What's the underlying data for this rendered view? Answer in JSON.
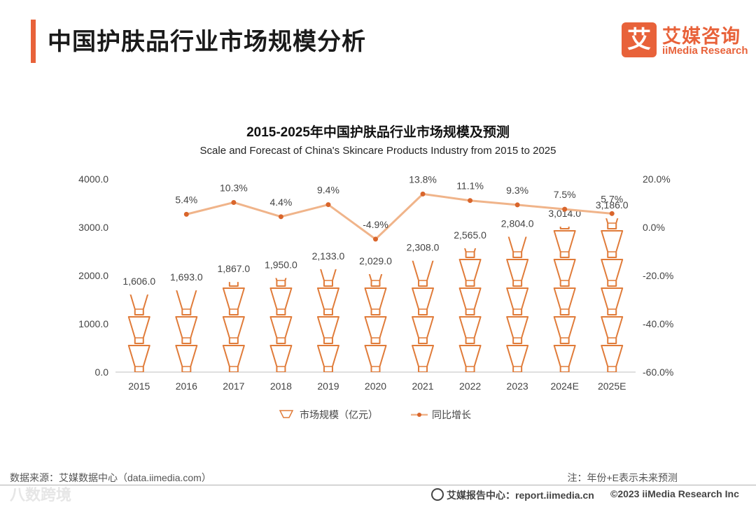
{
  "header": {
    "title": "中国护肤品行业市场规模分析",
    "logo_mark": "艾",
    "logo_cn": "艾媒咨询",
    "logo_en": "iiMedia Research"
  },
  "colors": {
    "accent": "#e8623a",
    "bar_stroke": "#e07b39",
    "line": "#f0b48a",
    "dot": "#d9652b"
  },
  "chart_data": {
    "type": "bar",
    "title": "2015-2025年中国护肤品行业市场规模及预测",
    "subtitle": "Scale and Forecast of China's Skincare Products Industry from 2015 to 2025",
    "categories": [
      "2015",
      "2016",
      "2017",
      "2018",
      "2019",
      "2020",
      "2021",
      "2022",
      "2023",
      "2024E",
      "2025E"
    ],
    "series": [
      {
        "name": "市场规模（亿元）",
        "type": "bar",
        "axis": "left",
        "values": [
          1606.0,
          1693.0,
          1867.0,
          1950.0,
          2133.0,
          2029.0,
          2308.0,
          2565.0,
          2804.0,
          3014.0,
          3186.0
        ],
        "labels": [
          "1,606.0",
          "1,693.0",
          "1,867.0",
          "1,950.0",
          "2,133.0",
          "2,029.0",
          "2,308.0",
          "2,565.0",
          "2,804.0",
          "3,014.0",
          "3,186.0"
        ]
      },
      {
        "name": "同比增长",
        "type": "line",
        "axis": "right",
        "values": [
          null,
          5.4,
          10.3,
          4.4,
          9.4,
          -4.9,
          13.8,
          11.1,
          9.3,
          7.5,
          5.7
        ],
        "labels": [
          "",
          "5.4%",
          "10.3%",
          "4.4%",
          "9.4%",
          "-4.9%",
          "13.8%",
          "11.1%",
          "9.3%",
          "7.5%",
          "5.7%"
        ]
      }
    ],
    "ylim": [
      0,
      4000
    ],
    "y2lim": [
      -60,
      20
    ],
    "yticks": [
      "0.0",
      "1000.0",
      "2000.0",
      "3000.0",
      "4000.0"
    ],
    "y2ticks": [
      "-60.0%",
      "-40.0%",
      "-20.0%",
      "0.0%",
      "20.0%"
    ],
    "legend": [
      "市场规模（亿元）",
      "同比增长"
    ],
    "legend_position": "bottom"
  },
  "footer": {
    "source": "数据来源：艾媒数据中心（data.iimedia.com）",
    "note": "注：年份+E表示未来预测",
    "report": "艾媒报告中心：report.iimedia.cn",
    "copyright": "©2023  iiMedia Research  Inc",
    "watermark": "八数跨境"
  }
}
